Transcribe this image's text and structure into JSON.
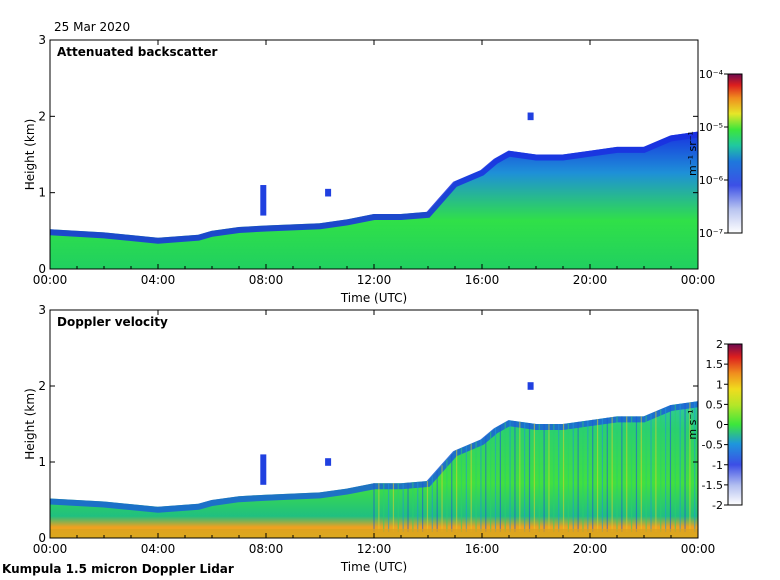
{
  "header": {
    "date": "25 Mar 2020"
  },
  "footer": {
    "instrument": "Kumpula 1.5 micron Doppler Lidar"
  },
  "chart_data": [
    {
      "type": "heatmap",
      "title": "Attenuated backscatter",
      "xlabel": "Time (UTC)",
      "ylabel": "Height (km)",
      "xlim": [
        0,
        24
      ],
      "ylim": [
        0,
        3
      ],
      "x_ticks": [
        "00:00",
        "04:00",
        "08:00",
        "12:00",
        "16:00",
        "20:00",
        "00:00"
      ],
      "y_ticks": [
        "0",
        "1",
        "2",
        "3"
      ],
      "colorbar": {
        "label": "m⁻¹ sr⁻¹",
        "scale": "log",
        "range": [
          1e-07,
          0.0001
        ],
        "tick_labels": [
          "10⁻⁴",
          "10⁻⁵",
          "10⁻⁶",
          "10⁻⁷"
        ]
      },
      "top_of_signal_km": [
        [
          0,
          0.52
        ],
        [
          2,
          0.48
        ],
        [
          4,
          0.41
        ],
        [
          5.5,
          0.45
        ],
        [
          6,
          0.5
        ],
        [
          7,
          0.55
        ],
        [
          8,
          0.57
        ],
        [
          10,
          0.6
        ],
        [
          11,
          0.65
        ],
        [
          12,
          0.72
        ],
        [
          13,
          0.72
        ],
        [
          14,
          0.75
        ],
        [
          14.5,
          0.95
        ],
        [
          15,
          1.15
        ],
        [
          16,
          1.3
        ],
        [
          16.5,
          1.45
        ],
        [
          17,
          1.55
        ],
        [
          18,
          1.5
        ],
        [
          19,
          1.5
        ],
        [
          20,
          1.55
        ],
        [
          21,
          1.6
        ],
        [
          22,
          1.6
        ],
        [
          23,
          1.75
        ],
        [
          24,
          1.8
        ]
      ],
      "isolated_features": [
        {
          "time_h": 7.9,
          "height_km": [
            0.7,
            1.1
          ]
        },
        {
          "time_h": 10.3,
          "height_km": [
            0.95,
            1.05
          ]
        },
        {
          "time_h": 17.8,
          "height_km": [
            1.95,
            2.05
          ]
        }
      ]
    },
    {
      "type": "heatmap",
      "title": "Doppler velocity",
      "xlabel": "Time (UTC)",
      "ylabel": "Height (km)",
      "xlim": [
        0,
        24
      ],
      "ylim": [
        0,
        3
      ],
      "x_ticks": [
        "00:00",
        "04:00",
        "08:00",
        "12:00",
        "16:00",
        "20:00",
        "00:00"
      ],
      "y_ticks": [
        "0",
        "1",
        "2",
        "3"
      ],
      "colorbar": {
        "label": "m s⁻¹",
        "scale": "linear",
        "range": [
          -2,
          2
        ],
        "tick_labels": [
          "2",
          "1.5",
          "1",
          "0.5",
          "0",
          "-0.5",
          "-1",
          "-1.5",
          "-2"
        ]
      },
      "top_of_signal_km": [
        [
          0,
          0.52
        ],
        [
          2,
          0.48
        ],
        [
          4,
          0.41
        ],
        [
          5.5,
          0.45
        ],
        [
          6,
          0.5
        ],
        [
          7,
          0.55
        ],
        [
          8,
          0.57
        ],
        [
          10,
          0.6
        ],
        [
          11,
          0.65
        ],
        [
          12,
          0.72
        ],
        [
          13,
          0.72
        ],
        [
          14,
          0.75
        ],
        [
          14.5,
          0.95
        ],
        [
          15,
          1.15
        ],
        [
          16,
          1.3
        ],
        [
          16.5,
          1.45
        ],
        [
          17,
          1.55
        ],
        [
          18,
          1.5
        ],
        [
          19,
          1.5
        ],
        [
          20,
          1.55
        ],
        [
          21,
          1.6
        ],
        [
          22,
          1.6
        ],
        [
          23,
          1.75
        ],
        [
          24,
          1.8
        ]
      ],
      "isolated_features": [
        {
          "time_h": 7.9,
          "height_km": [
            0.7,
            1.1
          ]
        },
        {
          "time_h": 10.3,
          "height_km": [
            0.95,
            1.05
          ]
        },
        {
          "time_h": 17.8,
          "height_km": [
            1.95,
            2.05
          ]
        }
      ]
    }
  ]
}
